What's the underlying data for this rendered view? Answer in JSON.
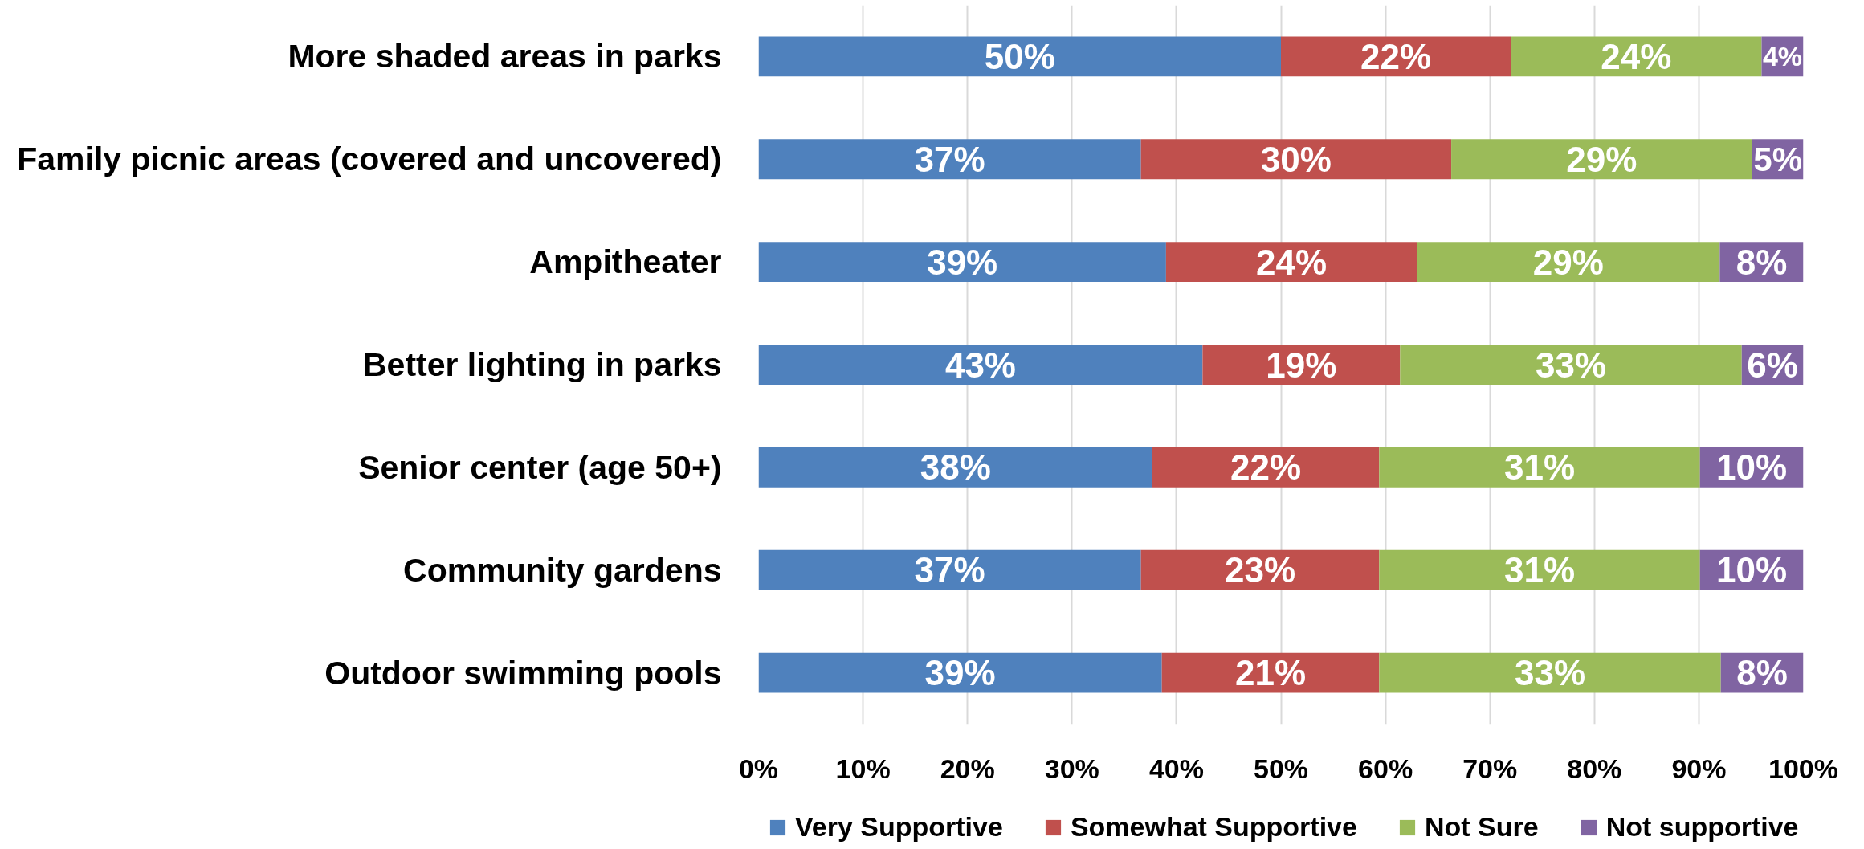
{
  "chart_data": {
    "type": "bar",
    "orientation": "horizontal",
    "stacked": true,
    "categories": [
      "More shaded areas in parks",
      "Family picnic areas (covered and uncovered)",
      "Ampitheater",
      "Better lighting in parks",
      "Senior center (age 50+)",
      "Community gardens",
      "Outdoor swimming pools"
    ],
    "series": [
      {
        "name": "Very Supportive",
        "color": "#4f81bd",
        "values": [
          50,
          36.6,
          39,
          42.5,
          37.7,
          36.6,
          38.6
        ],
        "value_labels": [
          "50%",
          "37%",
          "39%",
          "43%",
          "38%",
          "37%",
          "39%"
        ]
      },
      {
        "name": "Somewhat Supportive",
        "color": "#c0504d",
        "values": [
          22,
          29.7,
          24,
          18.9,
          21.7,
          22.8,
          20.8
        ],
        "value_labels": [
          "22%",
          "30%",
          "24%",
          "19%",
          "22%",
          "23%",
          "21%"
        ]
      },
      {
        "name": "Not Sure",
        "color": "#9bbb59",
        "values": [
          24,
          28.8,
          29,
          32.7,
          30.7,
          30.7,
          32.7
        ],
        "value_labels": [
          "24%",
          "29%",
          "29%",
          "33%",
          "31%",
          "31%",
          "33%"
        ]
      },
      {
        "name": "Not supportive",
        "color": "#8064a2",
        "values": [
          4,
          4.9,
          8,
          5.9,
          9.9,
          9.9,
          7.9
        ],
        "value_labels": [
          "4%",
          "5%",
          "8%",
          "6%",
          "10%",
          "10%",
          "8%"
        ]
      }
    ],
    "xlim": [
      0,
      100
    ],
    "xticks": [
      {
        "value": 0,
        "label": "0%"
      },
      {
        "value": 10,
        "label": "10%"
      },
      {
        "value": 20,
        "label": "20%"
      },
      {
        "value": 30,
        "label": "30%"
      },
      {
        "value": 40,
        "label": "40%"
      },
      {
        "value": 50,
        "label": "50%"
      },
      {
        "value": 60,
        "label": "60%"
      },
      {
        "value": 70,
        "label": "70%"
      },
      {
        "value": 80,
        "label": "80%"
      },
      {
        "value": 90,
        "label": "90%"
      },
      {
        "value": 100,
        "label": "100%"
      }
    ],
    "grid": "x",
    "legend": "bottom"
  }
}
